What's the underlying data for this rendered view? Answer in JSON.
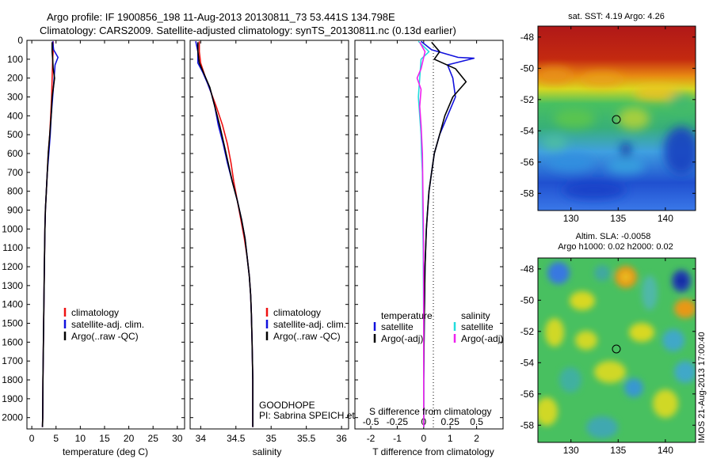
{
  "header": {
    "title1": "Argo profile: IF 1900856_198 11-Aug-2013 20130811_73 53.441S 134.798E",
    "title2": "Climatology: CARS2009. Satellite-adjusted climatology: synTS_20130811.nc (0.13d earlier)"
  },
  "colors": {
    "clim": "#ee1111",
    "sat": "#1111dd",
    "argo": "#000000",
    "sat_s": "#22dddd",
    "argo_s": "#ee22ee"
  },
  "chart_data": [
    {
      "type": "line",
      "id": "temperature",
      "xlabel": "temperature (deg C)",
      "ylabel": "",
      "xlim": [
        -1,
        31.5
      ],
      "ylim": [
        2060,
        0
      ],
      "xticks": [
        0,
        5,
        10,
        15,
        20,
        25,
        30
      ],
      "yticks": [
        0,
        100,
        200,
        300,
        400,
        500,
        600,
        700,
        800,
        900,
        1000,
        1100,
        1200,
        1300,
        1400,
        1500,
        1600,
        1700,
        1800,
        1900,
        2000
      ],
      "legend": [
        "climatology",
        "satellite-adj. clim.",
        "Argo(..raw -QC)"
      ],
      "series": [
        {
          "name": "climatology",
          "color": "#ee1111",
          "points": [
            [
              4.4,
              5
            ],
            [
              4.4,
              60
            ],
            [
              4.3,
              100
            ],
            [
              4.2,
              200
            ],
            [
              4.1,
              300
            ],
            [
              3.9,
              400
            ],
            [
              3.7,
              500
            ],
            [
              3.4,
              600
            ],
            [
              3.2,
              700
            ],
            [
              3.0,
              800
            ],
            [
              2.8,
              900
            ],
            [
              2.7,
              1000
            ],
            [
              2.6,
              1200
            ],
            [
              2.5,
              1400
            ],
            [
              2.4,
              1600
            ],
            [
              2.3,
              1800
            ],
            [
              2.25,
              2000
            ],
            [
              2.2,
              2050
            ]
          ]
        },
        {
          "name": "satellite-adj. clim.",
          "color": "#1111dd",
          "points": [
            [
              4.3,
              5
            ],
            [
              4.5,
              50
            ],
            [
              5.4,
              90
            ],
            [
              4.8,
              130
            ],
            [
              4.6,
              200
            ],
            [
              4.3,
              300
            ],
            [
              4.0,
              400
            ],
            [
              3.8,
              500
            ],
            [
              3.5,
              600
            ],
            [
              3.2,
              700
            ],
            [
              3.0,
              800
            ],
            [
              2.8,
              900
            ],
            [
              2.7,
              1000
            ],
            [
              2.6,
              1200
            ],
            [
              2.5,
              1400
            ],
            [
              2.4,
              1600
            ],
            [
              2.3,
              1800
            ],
            [
              2.25,
              2000
            ],
            [
              2.2,
              2050
            ]
          ]
        },
        {
          "name": "Argo(..raw -QC)",
          "color": "#000000",
          "points": [
            [
              4.2,
              10
            ],
            [
              4.2,
              60
            ],
            [
              4.3,
              100
            ],
            [
              4.4,
              150
            ],
            [
              4.7,
              200
            ],
            [
              4.5,
              240
            ],
            [
              4.2,
              300
            ],
            [
              4.0,
              400
            ],
            [
              3.7,
              500
            ],
            [
              3.4,
              600
            ],
            [
              3.2,
              700
            ],
            [
              3.0,
              800
            ],
            [
              2.8,
              900
            ],
            [
              2.7,
              1000
            ],
            [
              2.6,
              1200
            ],
            [
              2.5,
              1400
            ],
            [
              2.4,
              1600
            ],
            [
              2.3,
              1800
            ],
            [
              2.25,
              2000
            ],
            [
              2.2,
              2050
            ]
          ]
        }
      ]
    },
    {
      "type": "line",
      "id": "salinity",
      "xlabel": "salinity",
      "ylabel": "",
      "xlim": [
        33.85,
        36.1
      ],
      "ylim": [
        2060,
        0
      ],
      "xticks": [
        34,
        34.5,
        35,
        35.5,
        36
      ],
      "legend": [
        "climatology",
        "satellite-adj. clim.",
        "Argo(..raw -QC)"
      ],
      "annotation": [
        "GOODHOPE",
        "PI: Sabrina SPEICH et Michel ARBAIN"
      ],
      "series": [
        {
          "name": "climatology",
          "color": "#ee1111",
          "points": [
            [
              33.98,
              5
            ],
            [
              33.98,
              60
            ],
            [
              34.0,
              120
            ],
            [
              34.07,
              200
            ],
            [
              34.15,
              280
            ],
            [
              34.22,
              350
            ],
            [
              34.31,
              450
            ],
            [
              34.38,
              550
            ],
            [
              34.43,
              650
            ],
            [
              34.47,
              750
            ],
            [
              34.52,
              850
            ],
            [
              34.57,
              950
            ],
            [
              34.62,
              1050
            ],
            [
              34.66,
              1150
            ],
            [
              34.69,
              1250
            ],
            [
              34.71,
              1350
            ],
            [
              34.72,
              1450
            ],
            [
              34.73,
              1600
            ],
            [
              34.74,
              1800
            ],
            [
              34.74,
              2050
            ]
          ]
        },
        {
          "name": "satellite-adj. clim.",
          "color": "#1111dd",
          "points": [
            [
              33.93,
              5
            ],
            [
              33.96,
              60
            ],
            [
              33.96,
              120
            ],
            [
              34.03,
              170
            ],
            [
              34.1,
              230
            ],
            [
              34.15,
              280
            ],
            [
              34.2,
              350
            ],
            [
              34.25,
              450
            ],
            [
              34.32,
              550
            ],
            [
              34.38,
              650
            ],
            [
              34.45,
              750
            ],
            [
              34.52,
              850
            ],
            [
              34.58,
              950
            ],
            [
              34.63,
              1050
            ],
            [
              34.66,
              1150
            ],
            [
              34.69,
              1250
            ],
            [
              34.71,
              1350
            ],
            [
              34.72,
              1450
            ],
            [
              34.73,
              1600
            ],
            [
              34.74,
              1800
            ],
            [
              34.74,
              2050
            ]
          ]
        },
        {
          "name": "Argo(..raw -QC)",
          "color": "#000000",
          "points": [
            [
              33.96,
              10
            ],
            [
              33.96,
              60
            ],
            [
              33.98,
              120
            ],
            [
              34.05,
              180
            ],
            [
              34.13,
              250
            ],
            [
              34.2,
              350
            ],
            [
              34.27,
              450
            ],
            [
              34.33,
              550
            ],
            [
              34.39,
              650
            ],
            [
              34.45,
              750
            ],
            [
              34.52,
              850
            ],
            [
              34.58,
              950
            ],
            [
              34.63,
              1050
            ],
            [
              34.66,
              1150
            ],
            [
              34.69,
              1250
            ],
            [
              34.71,
              1350
            ],
            [
              34.72,
              1450
            ],
            [
              34.73,
              1600
            ],
            [
              34.74,
              1800
            ],
            [
              34.74,
              2050
            ]
          ]
        }
      ]
    },
    {
      "type": "line",
      "id": "difference",
      "xlabel": "T difference from climatology",
      "ylabel": "",
      "xlabel_top": "S difference from climatology",
      "xlim": [
        -2.6,
        3.0
      ],
      "ylim": [
        2060,
        0
      ],
      "xticks": [
        -2,
        -1,
        0,
        1,
        2
      ],
      "xticks_top": [
        "-0.5",
        "-0.25",
        "0",
        "0.25",
        "0.5"
      ],
      "legend_t_title": "temperature",
      "legend_s_title": "salinity",
      "legend_t": [
        "satellite",
        "Argo(-adj)"
      ],
      "legend_s": [
        "satellite",
        "Argo(-adj)"
      ],
      "series": [
        {
          "name": "satellite",
          "color": "#1111dd",
          "points": [
            [
              -0.1,
              5
            ],
            [
              0.3,
              50
            ],
            [
              1.3,
              90
            ],
            [
              1.9,
              95
            ],
            [
              0.9,
              130
            ],
            [
              1.1,
              200
            ],
            [
              1.2,
              300
            ],
            [
              0.9,
              400
            ],
            [
              0.6,
              500
            ],
            [
              0.4,
              600
            ],
            [
              0.3,
              700
            ],
            [
              0.2,
              800
            ],
            [
              0.15,
              900
            ],
            [
              0.1,
              1000
            ],
            [
              0.05,
              1200
            ],
            [
              0.02,
              1500
            ],
            [
              0.0,
              1800
            ],
            [
              0.0,
              2050
            ]
          ]
        },
        {
          "name": "Argo(-adj)",
          "color": "#000000",
          "points": [
            [
              0.3,
              10
            ],
            [
              0.6,
              60
            ],
            [
              0.4,
              100
            ],
            [
              1.2,
              150
            ],
            [
              1.6,
              220
            ],
            [
              1.1,
              300
            ],
            [
              0.8,
              400
            ],
            [
              0.6,
              500
            ],
            [
              0.4,
              600
            ],
            [
              0.3,
              700
            ],
            [
              0.2,
              800
            ],
            [
              0.15,
              900
            ],
            [
              0.1,
              1000
            ],
            [
              0.05,
              1200
            ],
            [
              0.02,
              1500
            ],
            [
              0.0,
              1800
            ],
            [
              0.0,
              2050
            ]
          ]
        },
        {
          "name": "satellite",
          "color": "#22dddd",
          "points": [
            [
              -0.2,
              5
            ],
            [
              0.2,
              60
            ],
            [
              -0.1,
              100
            ],
            [
              -0.15,
              200
            ],
            [
              -0.2,
              300
            ],
            [
              -0.15,
              400
            ],
            [
              -0.1,
              500
            ],
            [
              -0.08,
              600
            ],
            [
              -0.05,
              700
            ],
            [
              -0.04,
              900
            ],
            [
              -0.02,
              1100
            ],
            [
              -0.01,
              1300
            ],
            [
              0.0,
              1500
            ],
            [
              0.0,
              2050
            ]
          ]
        },
        {
          "name": "Argo(-adj)",
          "color": "#ee22ee",
          "points": [
            [
              -0.15,
              10
            ],
            [
              0.05,
              60
            ],
            [
              -0.1,
              150
            ],
            [
              -0.25,
              200
            ],
            [
              -0.1,
              260
            ],
            [
              -0.15,
              350
            ],
            [
              -0.1,
              450
            ],
            [
              -0.05,
              600
            ],
            [
              -0.03,
              800
            ],
            [
              -0.01,
              1000
            ],
            [
              0.0,
              1300
            ],
            [
              0.0,
              2050
            ]
          ]
        }
      ]
    },
    {
      "type": "heatmap",
      "id": "sst_map",
      "title": "sat. SST: 4.19 Argo: 4.26",
      "xlim": [
        126.5,
        143.2
      ],
      "ylim": [
        -59.1,
        -47.3
      ],
      "xticks": [
        130,
        135,
        140
      ],
      "yticks": [
        -48,
        -50,
        -52,
        -54,
        -56,
        -58
      ],
      "marker": [
        134.8,
        -53.44
      ]
    },
    {
      "type": "heatmap",
      "id": "sla_map",
      "title": "Altim. SLA: -0.0058",
      "subtitle": "Argo h1000: 0.02 h2000: 0.02",
      "xlim": [
        126.5,
        143.2
      ],
      "ylim": [
        -59.1,
        -47.3
      ],
      "xticks": [
        130,
        135,
        140
      ],
      "yticks": [
        -48,
        -50,
        -52,
        -54,
        -56,
        -58
      ],
      "marker": [
        134.8,
        -53.44
      ],
      "side_label": "IMOS 21-Aug-2013 17:00:40"
    }
  ]
}
